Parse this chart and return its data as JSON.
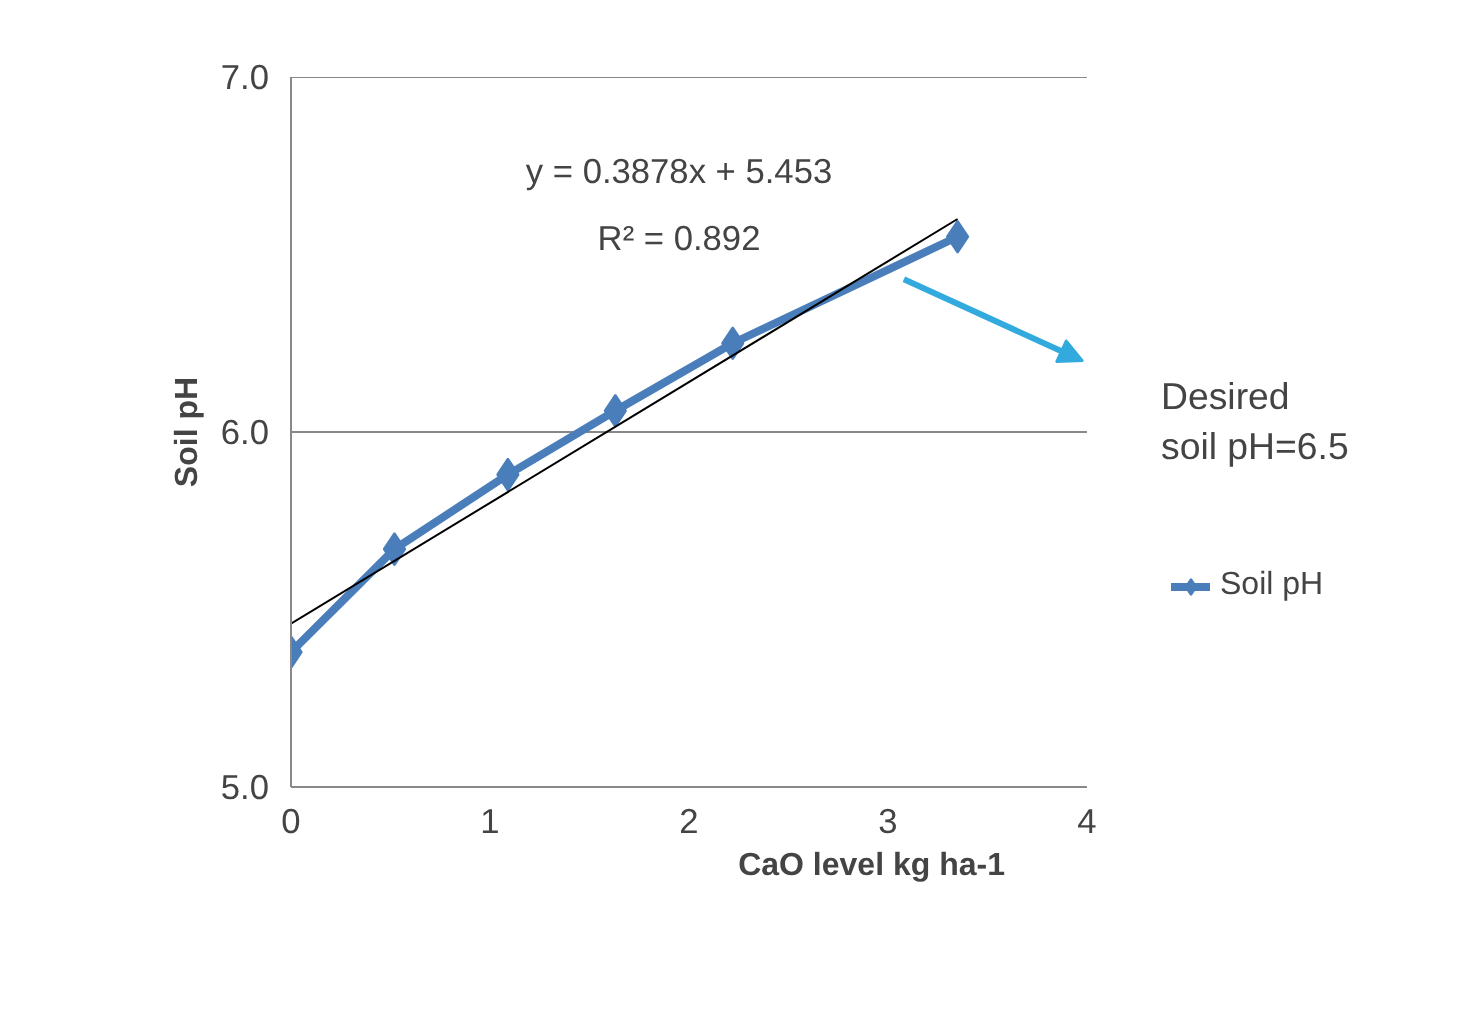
{
  "chart_data": {
    "type": "line",
    "xlabel": "CaO level  kg ha-1",
    "ylabel": "Soil pH",
    "xlim": [
      0,
      4
    ],
    "xticks": [
      0,
      1,
      2,
      3,
      4
    ],
    "ylim": [
      5.0,
      7.0
    ],
    "yticks": [
      {
        "value": 5,
        "label": "5.0"
      },
      {
        "value": 6,
        "label": "6.0"
      },
      {
        "value": 7,
        "label": "7.0"
      }
    ],
    "grid": "y",
    "legend": "right",
    "marker": "diamond",
    "line_style": "solid",
    "series": [
      {
        "name": "Soil pH",
        "color": "#4a7ebb",
        "x": [
          0,
          0.52,
          1.09,
          1.63,
          2.22,
          3.35
        ],
        "values": [
          5.38,
          5.67,
          5.88,
          6.06,
          6.25,
          6.55
        ]
      },
      {
        "type": "line",
        "color": "#000000",
        "x": [
          0,
          3.35
        ],
        "values": [
          5.46,
          6.6
        ],
        "marker": "none"
      }
    ],
    "annotations": [
      "y = 0.3878x + 5.453",
      "R² = 0.892",
      "Desired\nsoil pH=6.5"
    ]
  }
}
